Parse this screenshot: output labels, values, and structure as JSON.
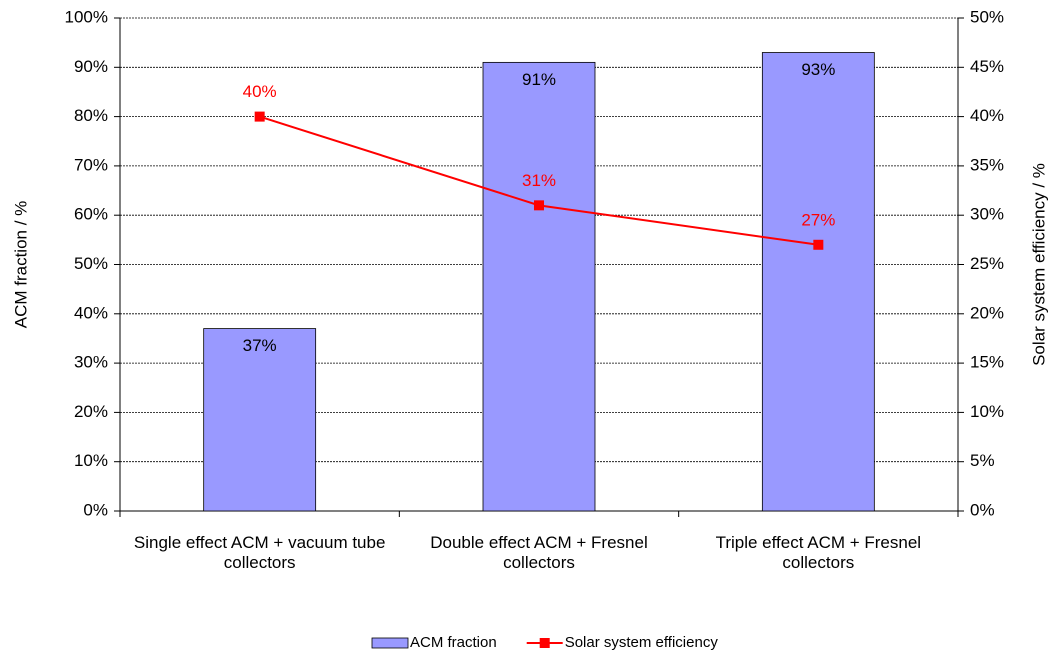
{
  "chart_data": {
    "type": "bar",
    "categories": [
      "Single effect ACM + vacuum tube collectors",
      "Double effect ACM + Fresnel collectors",
      "Triple effect ACM + Fresnel collectors"
    ],
    "series": [
      {
        "name": "ACM fraction",
        "type": "bar",
        "color": "#9999ff",
        "values": [
          37,
          91,
          93
        ],
        "value_labels": [
          "37%",
          "91%",
          "93%"
        ]
      },
      {
        "name": "Solar system efficiency",
        "type": "line",
        "axis": "y2",
        "color": "#ff0000",
        "values": [
          40,
          31,
          27
        ],
        "value_labels": [
          "40%",
          "31%",
          "27%"
        ]
      }
    ],
    "ylabel": "ACM fraction / %",
    "y2label": "Solar system efficiency / %",
    "ylim": [
      0,
      100
    ],
    "yticks": [
      {
        "value": 0,
        "label": "0%"
      },
      {
        "value": 10,
        "label": "10%"
      },
      {
        "value": 20,
        "label": "20%"
      },
      {
        "value": 30,
        "label": "30%"
      },
      {
        "value": 40,
        "label": "40%"
      },
      {
        "value": 50,
        "label": "50%"
      },
      {
        "value": 60,
        "label": "60%"
      },
      {
        "value": 70,
        "label": "70%"
      },
      {
        "value": 80,
        "label": "80%"
      },
      {
        "value": 90,
        "label": "90%"
      },
      {
        "value": 100,
        "label": "100%"
      }
    ],
    "y2lim": [
      0,
      50
    ],
    "y2ticks": [
      {
        "value": 0,
        "label": "0%"
      },
      {
        "value": 5,
        "label": "5%"
      },
      {
        "value": 10,
        "label": "10%"
      },
      {
        "value": 15,
        "label": "15%"
      },
      {
        "value": 20,
        "label": "20%"
      },
      {
        "value": 25,
        "label": "25%"
      },
      {
        "value": 30,
        "label": "30%"
      },
      {
        "value": 35,
        "label": "35%"
      },
      {
        "value": 40,
        "label": "40%"
      },
      {
        "value": 45,
        "label": "45%"
      },
      {
        "value": 50,
        "label": "50%"
      }
    ],
    "grid": true,
    "legend": "bottom"
  }
}
